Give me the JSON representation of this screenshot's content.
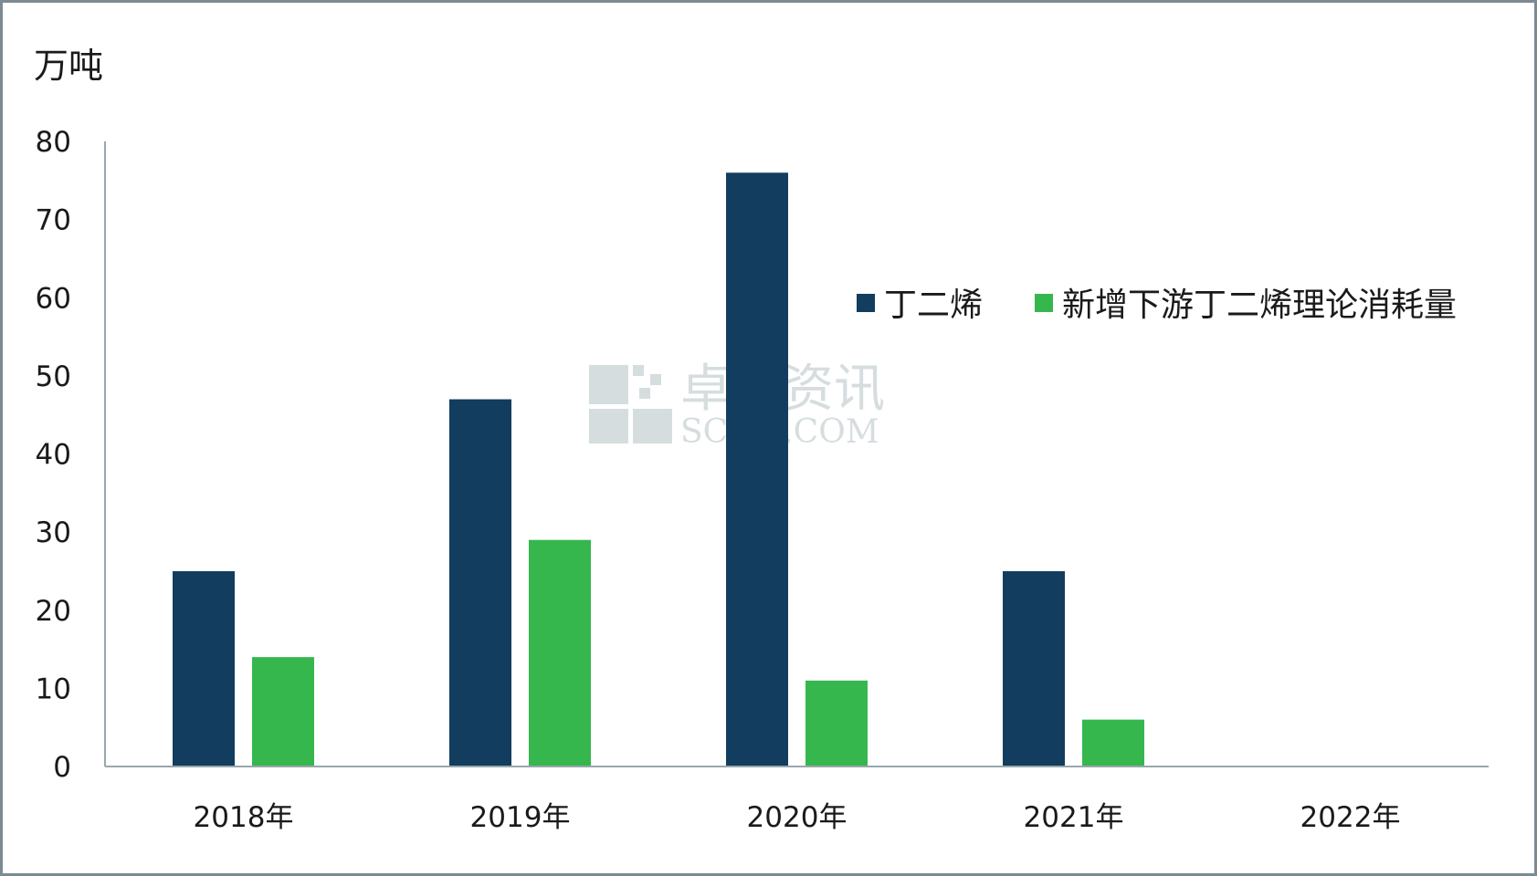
{
  "chart_data": {
    "type": "bar",
    "title": "",
    "unit_label": "万吨",
    "categories": [
      "2018年",
      "2019年",
      "2020年",
      "2021年",
      "2022年"
    ],
    "series": [
      {
        "name": "丁二烯",
        "values": [
          25,
          47,
          76,
          25,
          0
        ],
        "color": "#123d5e"
      },
      {
        "name": "新增下游丁二烯理论消耗量",
        "values": [
          14,
          29,
          11,
          6,
          0
        ],
        "color": "#35b74e"
      }
    ],
    "ylim": [
      0,
      80
    ],
    "yticks": [
      0,
      10,
      20,
      30,
      40,
      50,
      60,
      70,
      80
    ],
    "grid": false,
    "legend_position": "right-middle"
  },
  "watermark": {
    "cn": "卓创资讯",
    "en": "SCI99.COM"
  }
}
